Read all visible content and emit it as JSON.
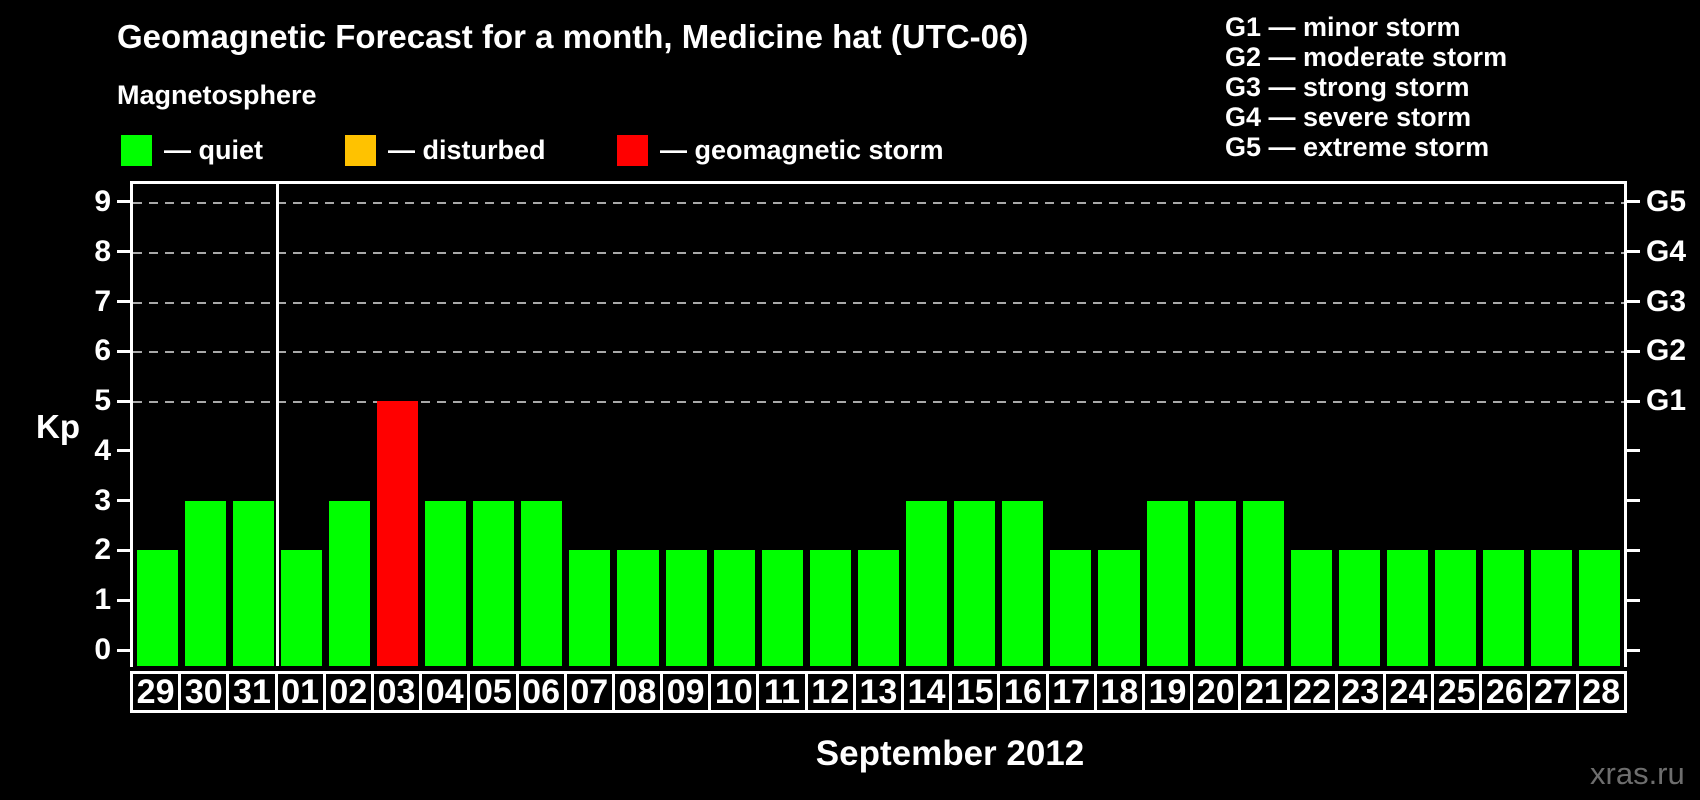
{
  "header": {
    "title": "Geomagnetic Forecast for a month, Medicine hat (UTC-06)",
    "subtitle": "Magnetosphere"
  },
  "legend": {
    "items": [
      {
        "name": "quiet",
        "label": "— quiet",
        "color": "#00ff00"
      },
      {
        "name": "disturbed",
        "label": "— disturbed",
        "color": "#ffc200"
      },
      {
        "name": "storm",
        "label": "— geomagnetic storm",
        "color": "#ff0000"
      }
    ]
  },
  "storm_scale": [
    "G1 — minor storm",
    "G2 — moderate storm",
    "G3 — strong storm",
    "G4 — severe storm",
    "G5 — extreme storm"
  ],
  "axes": {
    "y_label": "Kp",
    "y_ticks": [
      0,
      1,
      2,
      3,
      4,
      5,
      6,
      7,
      8,
      9
    ],
    "right_labels": [
      {
        "label": "G1",
        "kp": 5
      },
      {
        "label": "G2",
        "kp": 6
      },
      {
        "label": "G3",
        "kp": 7
      },
      {
        "label": "G4",
        "kp": 8
      },
      {
        "label": "G5",
        "kp": 9
      }
    ],
    "x_label": "September 2012"
  },
  "watermark": "xras.ru",
  "chart_data": {
    "type": "bar",
    "title": "Geomagnetic Forecast for a month, Medicine hat (UTC-06)",
    "xlabel": "September 2012",
    "ylabel": "Kp",
    "ylim": [
      0,
      9
    ],
    "gridlines_at": [
      5,
      6,
      7,
      8,
      9
    ],
    "grid_color": "#a8a8a8",
    "month_start_category": "01",
    "categories": [
      "29",
      "30",
      "31",
      "01",
      "02",
      "03",
      "04",
      "05",
      "06",
      "07",
      "08",
      "09",
      "10",
      "11",
      "12",
      "13",
      "14",
      "15",
      "16",
      "17",
      "18",
      "19",
      "20",
      "21",
      "22",
      "23",
      "24",
      "25",
      "26",
      "27",
      "28"
    ],
    "values": [
      2,
      3,
      3,
      2,
      3,
      5,
      3,
      3,
      3,
      2,
      2,
      2,
      2,
      2,
      2,
      2,
      3,
      3,
      3,
      2,
      2,
      3,
      3,
      3,
      2,
      2,
      2,
      2,
      2,
      2,
      2
    ],
    "statuses": [
      "quiet",
      "quiet",
      "quiet",
      "quiet",
      "quiet",
      "storm",
      "quiet",
      "quiet",
      "quiet",
      "quiet",
      "quiet",
      "quiet",
      "quiet",
      "quiet",
      "quiet",
      "quiet",
      "quiet",
      "quiet",
      "quiet",
      "quiet",
      "quiet",
      "quiet",
      "quiet",
      "quiet",
      "quiet",
      "quiet",
      "quiet",
      "quiet",
      "quiet",
      "quiet",
      "quiet"
    ],
    "colors": {
      "quiet": "#00ff00",
      "disturbed": "#ffc200",
      "storm": "#ff0000"
    }
  }
}
